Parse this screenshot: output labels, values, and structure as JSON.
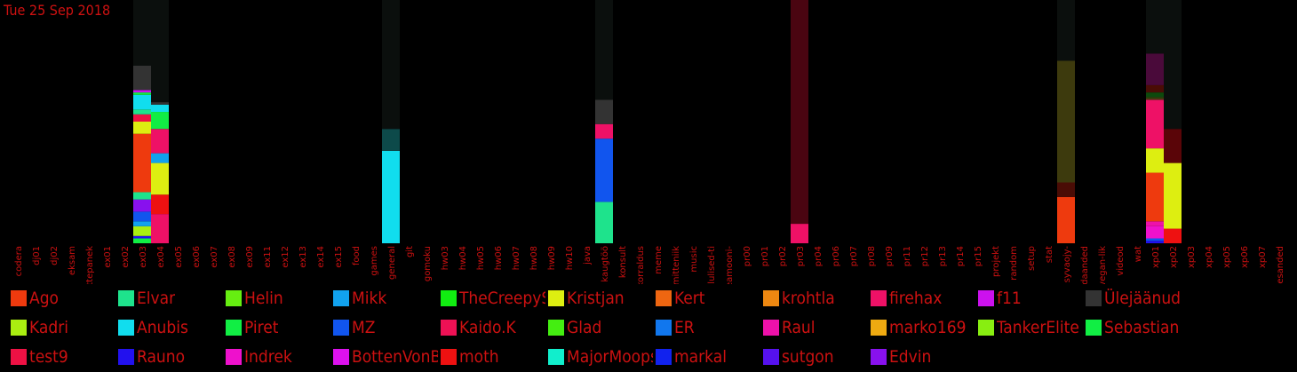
{
  "date_label": "Tue 25 Sep 2018",
  "chart_data": {
    "type": "bar",
    "stacked": true,
    "title": "",
    "xlabel": "",
    "ylabel": "",
    "ylim": [
      0,
      1
    ],
    "categories": [
      "codera",
      "dj01",
      "dj02",
      "eksam",
      "ettepanek",
      "ex01",
      "ex02",
      "ex03",
      "ex04",
      "ex05",
      "ex06",
      "ex07",
      "ex08",
      "ex09",
      "ex11",
      "ex12",
      "ex13",
      "ex14",
      "ex15",
      "food",
      "games",
      "general",
      "git",
      "gomoku",
      "hw03",
      "hw04",
      "hw05",
      "hw06",
      "hw07",
      "hw08",
      "hw09",
      "hw10",
      "java",
      "kaugtöö",
      "konsult",
      "korraldus",
      "meme",
      "mitteniik",
      "music",
      "olulised-ti",
      "peamooni-",
      "pr00",
      "pr01",
      "pr02",
      "pr03",
      "pr04",
      "pr06",
      "pr07",
      "pr08",
      "pr09",
      "pr11",
      "pr12",
      "pr13",
      "pr14",
      "pr15",
      "projekt",
      "random",
      "setup",
      "stat",
      "syvaojy-",
      "teadaanded",
      "vegan-lik",
      "videod",
      "wat",
      "xp01",
      "xp02",
      "xp03",
      "xp04",
      "xp05",
      "xp06",
      "xp07",
      "ülesanded"
    ],
    "bars": [
      {
        "category": "ex03",
        "segments": [
          [
            "Sebastian",
            0.02
          ],
          [
            "Rauno",
            0.01
          ],
          [
            "Kadri",
            0.04
          ],
          [
            "Mikk",
            0.02
          ],
          [
            "MZ",
            0.04
          ],
          [
            "Edvin",
            0.05
          ],
          [
            "Elvar",
            0.03
          ],
          [
            "Ago",
            0.24
          ],
          [
            "Kristjan",
            0.05
          ],
          [
            "test9",
            0.03
          ],
          [
            "Elvar",
            0.02
          ],
          [
            "Anubis",
            0.06
          ],
          [
            "Piret",
            0.01
          ],
          [
            "f11",
            0.01
          ],
          [
            "Ülejäänud",
            0.1
          ],
          [
            "rest",
            0.31
          ]
        ]
      },
      {
        "category": "ex04",
        "segments": [
          [
            "firehax",
            0.12
          ],
          [
            "moth",
            0.08
          ],
          [
            "Kristjan",
            0.13
          ],
          [
            "Mikk",
            0.04
          ],
          [
            "firehax",
            0.1
          ],
          [
            "Piret",
            0.07
          ],
          [
            "Anubis",
            0.03
          ],
          [
            "Ülejäänud",
            0.01
          ],
          [
            "rest",
            0.42
          ]
        ]
      },
      {
        "category": "general",
        "segments": [
          [
            "Anubis",
            0.38
          ],
          [
            "Anubis-dim",
            0.09
          ],
          [
            "rest",
            0.53
          ]
        ]
      },
      {
        "category": "kaugtöö",
        "segments": [
          [
            "Elvar",
            0.17
          ],
          [
            "MZ",
            0.26
          ],
          [
            "firehax",
            0.06
          ],
          [
            "Ülejäänud",
            0.1
          ],
          [
            "rest",
            0.41
          ]
        ]
      },
      {
        "category": "pr03",
        "segments": [
          [
            "firehax",
            0.08
          ],
          [
            "firehax-dark",
            0.92
          ]
        ]
      },
      {
        "category": "syvaojy-",
        "segments": [
          [
            "Ago",
            0.19
          ],
          [
            "Ago-dark",
            0.06
          ],
          [
            "Kadri-dark",
            0.5
          ],
          [
            "rest",
            0.25
          ]
        ]
      },
      {
        "category": "xp01",
        "segments": [
          [
            "Rauno",
            0.01
          ],
          [
            "MZ",
            0.01
          ],
          [
            "Indrek",
            0.05
          ],
          [
            "Raul",
            0.02
          ],
          [
            "Ago",
            0.2
          ],
          [
            "Kristjan",
            0.1
          ],
          [
            "firehax",
            0.2
          ],
          [
            "Kadri-dark",
            0.01
          ],
          [
            "Piret-dark",
            0.02
          ],
          [
            "Ago-dark",
            0.03
          ],
          [
            "Indrek-dark",
            0.13
          ],
          [
            "rest",
            0.22
          ]
        ]
      },
      {
        "category": "xp02",
        "segments": [
          [
            "moth",
            0.06
          ],
          [
            "Kristjan",
            0.27
          ],
          [
            "moth-dark",
            0.14
          ],
          [
            "rest",
            0.53
          ]
        ]
      }
    ]
  },
  "legend": [
    {
      "name": "Ago",
      "color": "#ee3a0e"
    },
    {
      "name": "Elvar",
      "color": "#1ee38c"
    },
    {
      "name": "Helin",
      "color": "#66ee11"
    },
    {
      "name": "Mikk",
      "color": "#11a2ee"
    },
    {
      "name": "TheCreepySh",
      "color": "#11ee11"
    },
    {
      "name": "Kristjan",
      "color": "#ddee11"
    },
    {
      "name": "Kert",
      "color": "#ee6611"
    },
    {
      "name": "krohtla",
      "color": "#ee8811"
    },
    {
      "name": "firehax",
      "color": "#ee1166"
    },
    {
      "name": "f11",
      "color": "#cc11ee"
    },
    {
      "name": "Ülejäänud",
      "color": "#333333"
    },
    {
      "name": "Kadri",
      "color": "#aaee11"
    },
    {
      "name": "Anubis",
      "color": "#11ddee"
    },
    {
      "name": "Piret",
      "color": "#11ee44"
    },
    {
      "name": "MZ",
      "color": "#1155ee"
    },
    {
      "name": "Kaido.K",
      "color": "#ee1155"
    },
    {
      "name": "Glad",
      "color": "#44ee11"
    },
    {
      "name": "ER",
      "color": "#1177ee"
    },
    {
      "name": "Raul",
      "color": "#ee11aa"
    },
    {
      "name": "marko169",
      "color": "#eeaa11"
    },
    {
      "name": "TankerElite",
      "color": "#88ee11"
    },
    {
      "name": "Sebastian",
      "color": "#11ee44"
    },
    {
      "name": "test9",
      "color": "#ee1144"
    },
    {
      "name": "Rauno",
      "color": "#2211ee"
    },
    {
      "name": "Indrek",
      "color": "#ee11cc"
    },
    {
      "name": "BottenVonBot",
      "color": "#dd11ee"
    },
    {
      "name": "moth",
      "color": "#ee1111"
    },
    {
      "name": "MajorMoopsy",
      "color": "#11eecc"
    },
    {
      "name": "markal",
      "color": "#1122ee"
    },
    {
      "name": "sutgon",
      "color": "#5511ee"
    },
    {
      "name": "Edvin",
      "color": "#8811ee"
    }
  ],
  "extra_colors": {
    "rest": "#0b0f0d",
    "Anubis-dim": "#0d4a4a",
    "firehax-dark": "#4a0511",
    "Ago-dark": "#4a0c05",
    "Kadri-dark": "#3d3a0d",
    "Piret-dark": "#0d4a0d",
    "Indrek-dark": "#4a0a3a",
    "moth-dark": "#5a0508"
  }
}
